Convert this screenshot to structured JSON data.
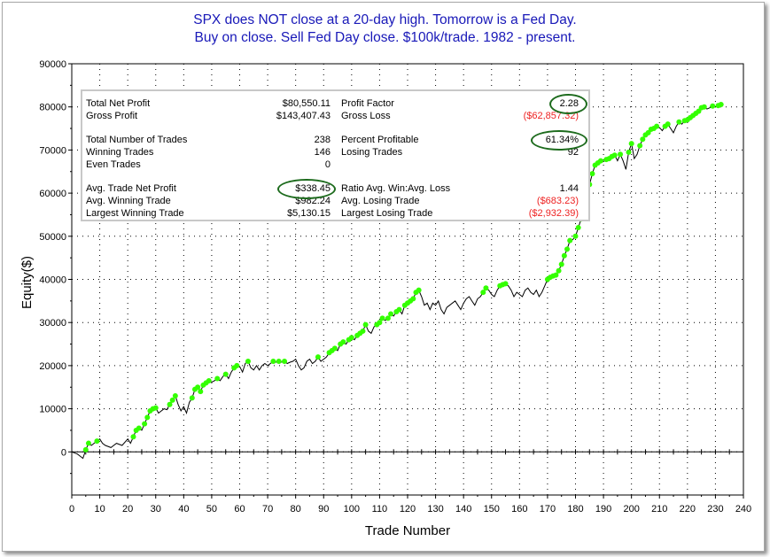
{
  "title": {
    "line1": "SPX does NOT close at a 20-day high. Tomorrow is a Fed Day.",
    "line2": "Buy on close. Sell Fed Day close. $100k/trade. 1982 - present."
  },
  "stats": {
    "left": [
      {
        "label": "Total Net Profit",
        "value": "$80,550.11"
      },
      {
        "label": "Gross Profit",
        "value": "$143,407.43"
      },
      {
        "label": "Total Number of Trades",
        "value": "238"
      },
      {
        "label": "Winning Trades",
        "value": "146"
      },
      {
        "label": "Even Trades",
        "value": "0"
      },
      {
        "label": "Avg. Trade Net Profit",
        "value": "$338.45"
      },
      {
        "label": "Avg. Winning Trade",
        "value": "$982.24"
      },
      {
        "label": "Largest Winning Trade",
        "value": "$5,130.15"
      }
    ],
    "right": [
      {
        "label": "Profit Factor",
        "value": "2.28"
      },
      {
        "label": "Gross Loss",
        "value": "($62,857.32)"
      },
      {
        "label": "Percent Profitable",
        "value": "61.34%"
      },
      {
        "label": "Losing Trades",
        "value": "92"
      },
      {
        "label": "Ratio Avg. Win:Avg. Loss",
        "value": "1.44"
      },
      {
        "label": "Avg. Losing Trade",
        "value": "($683.23)"
      },
      {
        "label": "Largest Losing Trade",
        "value": "($2,932.39)"
      }
    ]
  },
  "colors": {
    "title": "#1818b8",
    "equity_line": "#000000",
    "new_high_marker": "#33ff00",
    "negative_value": "#ee2222",
    "highlight_circle": "#1d6b1d"
  },
  "chart_data": {
    "type": "line",
    "xlabel": "Trade Number",
    "ylabel": "Equity($)",
    "xlim": [
      0,
      240
    ],
    "ylim": [
      -10000,
      90000
    ],
    "x_ticks": [
      0,
      10,
      20,
      30,
      40,
      50,
      60,
      70,
      80,
      90,
      100,
      110,
      120,
      130,
      140,
      150,
      160,
      170,
      180,
      190,
      200,
      210,
      220,
      230,
      240
    ],
    "y_ticks": [
      0,
      10000,
      20000,
      30000,
      40000,
      50000,
      60000,
      70000,
      80000,
      90000
    ],
    "grid": "dotted",
    "series": [
      {
        "values": [
          [
            0,
            0
          ],
          [
            2,
            -500
          ],
          [
            4,
            -1500
          ],
          [
            5,
            500
          ],
          [
            6,
            2000
          ],
          [
            7,
            1500
          ],
          [
            9,
            2500
          ],
          [
            10,
            3000
          ],
          [
            11,
            2000
          ],
          [
            12,
            1500
          ],
          [
            14,
            1000
          ],
          [
            16,
            2000
          ],
          [
            18,
            1500
          ],
          [
            20,
            3000
          ],
          [
            21,
            2000
          ],
          [
            22,
            3500
          ],
          [
            23,
            5000
          ],
          [
            24,
            5500
          ],
          [
            25,
            5000
          ],
          [
            26,
            6500
          ],
          [
            27,
            8000
          ],
          [
            28,
            9500
          ],
          [
            29,
            10000
          ],
          [
            30,
            10200
          ],
          [
            31,
            9000
          ],
          [
            32,
            9500
          ],
          [
            33,
            10000
          ],
          [
            34,
            9800
          ],
          [
            35,
            11000
          ],
          [
            36,
            12000
          ],
          [
            37,
            13000
          ],
          [
            38,
            11000
          ],
          [
            39,
            9500
          ],
          [
            40,
            10500
          ],
          [
            41,
            9000
          ],
          [
            42,
            11500
          ],
          [
            43,
            12500
          ],
          [
            44,
            14500
          ],
          [
            45,
            15000
          ],
          [
            46,
            14000
          ],
          [
            47,
            15500
          ],
          [
            48,
            16000
          ],
          [
            49,
            16500
          ],
          [
            50,
            16200
          ],
          [
            51,
            16500
          ],
          [
            52,
            17000
          ],
          [
            53,
            16500
          ],
          [
            54,
            17500
          ],
          [
            55,
            18000
          ],
          [
            56,
            17000
          ],
          [
            57,
            18500
          ],
          [
            58,
            19500
          ],
          [
            59,
            20000
          ],
          [
            60,
            19800
          ],
          [
            61,
            18500
          ],
          [
            62,
            20500
          ],
          [
            63,
            21000
          ],
          [
            64,
            19500
          ],
          [
            65,
            19000
          ],
          [
            66,
            20000
          ],
          [
            67,
            19000
          ],
          [
            68,
            20000
          ],
          [
            69,
            20500
          ],
          [
            70,
            20000
          ],
          [
            71,
            20500
          ],
          [
            72,
            21000
          ],
          [
            73,
            20800
          ],
          [
            74,
            21000
          ],
          [
            75,
            20800
          ],
          [
            76,
            21000
          ],
          [
            77,
            20500
          ],
          [
            78,
            20800
          ],
          [
            79,
            21000
          ],
          [
            80,
            21500
          ],
          [
            81,
            20000
          ],
          [
            82,
            19000
          ],
          [
            83,
            19500
          ],
          [
            84,
            21000
          ],
          [
            85,
            21500
          ],
          [
            86,
            20500
          ],
          [
            87,
            21000
          ],
          [
            88,
            22000
          ],
          [
            89,
            21000
          ],
          [
            90,
            21500
          ],
          [
            91,
            22000
          ],
          [
            92,
            23000
          ],
          [
            93,
            23500
          ],
          [
            94,
            24000
          ],
          [
            95,
            23500
          ],
          [
            96,
            25000
          ],
          [
            97,
            25500
          ],
          [
            98,
            25000
          ],
          [
            99,
            26000
          ],
          [
            100,
            26500
          ],
          [
            101,
            26000
          ],
          [
            102,
            27000
          ],
          [
            103,
            27500
          ],
          [
            104,
            28000
          ],
          [
            105,
            29500
          ],
          [
            106,
            28000
          ],
          [
            107,
            27500
          ],
          [
            108,
            29000
          ],
          [
            109,
            29500
          ],
          [
            110,
            30000
          ],
          [
            111,
            31000
          ],
          [
            112,
            30500
          ],
          [
            113,
            31000
          ],
          [
            114,
            32000
          ],
          [
            115,
            31500
          ],
          [
            116,
            32500
          ],
          [
            117,
            33000
          ],
          [
            118,
            32000
          ],
          [
            119,
            34000
          ],
          [
            120,
            34500
          ],
          [
            121,
            35000
          ],
          [
            122,
            35500
          ],
          [
            123,
            37000
          ],
          [
            124,
            37500
          ],
          [
            125,
            36000
          ],
          [
            126,
            34000
          ],
          [
            127,
            34500
          ],
          [
            128,
            33000
          ],
          [
            129,
            34500
          ],
          [
            130,
            34000
          ],
          [
            131,
            35000
          ],
          [
            132,
            33000
          ],
          [
            133,
            32000
          ],
          [
            134,
            33500
          ],
          [
            135,
            34000
          ],
          [
            136,
            34500
          ],
          [
            137,
            35000
          ],
          [
            138,
            34000
          ],
          [
            139,
            33000
          ],
          [
            140,
            34500
          ],
          [
            141,
            35500
          ],
          [
            142,
            36000
          ],
          [
            143,
            35000
          ],
          [
            144,
            34000
          ],
          [
            145,
            35500
          ],
          [
            146,
            36000
          ],
          [
            147,
            37000
          ],
          [
            148,
            38000
          ],
          [
            149,
            37500
          ],
          [
            150,
            36500
          ],
          [
            151,
            36000
          ],
          [
            152,
            37500
          ],
          [
            153,
            38500
          ],
          [
            154,
            38800
          ],
          [
            155,
            39000
          ],
          [
            156,
            38500
          ],
          [
            157,
            37500
          ],
          [
            158,
            36000
          ],
          [
            159,
            37000
          ],
          [
            160,
            36500
          ],
          [
            161,
            36000
          ],
          [
            162,
            37500
          ],
          [
            163,
            38000
          ],
          [
            164,
            37000
          ],
          [
            165,
            36500
          ],
          [
            166,
            37500
          ],
          [
            167,
            36000
          ],
          [
            168,
            37000
          ],
          [
            169,
            38500
          ],
          [
            170,
            40000
          ],
          [
            171,
            40500
          ],
          [
            172,
            40800
          ],
          [
            173,
            41000
          ],
          [
            174,
            42000
          ],
          [
            175,
            43500
          ],
          [
            176,
            45500
          ],
          [
            177,
            47000
          ],
          [
            178,
            49000
          ],
          [
            179,
            49200
          ],
          [
            180,
            50000
          ],
          [
            181,
            52000
          ],
          [
            182,
            54000
          ],
          [
            183,
            58000
          ],
          [
            184,
            60000
          ],
          [
            185,
            62000
          ],
          [
            186,
            64500
          ],
          [
            187,
            66500
          ],
          [
            188,
            67000
          ],
          [
            189,
            67500
          ],
          [
            190,
            67300
          ],
          [
            191,
            67800
          ],
          [
            192,
            68000
          ],
          [
            193,
            68500
          ],
          [
            194,
            68800
          ],
          [
            195,
            67500
          ],
          [
            196,
            69000
          ],
          [
            197,
            67500
          ],
          [
            198,
            65500
          ],
          [
            199,
            69500
          ],
          [
            200,
            71500
          ],
          [
            201,
            68000
          ],
          [
            202,
            69000
          ],
          [
            203,
            71000
          ],
          [
            204,
            72500
          ],
          [
            205,
            73500
          ],
          [
            206,
            74000
          ],
          [
            207,
            74800
          ],
          [
            208,
            75000
          ],
          [
            209,
            75500
          ],
          [
            210,
            75200
          ],
          [
            211,
            74500
          ],
          [
            212,
            75500
          ],
          [
            213,
            76000
          ],
          [
            214,
            75000
          ],
          [
            215,
            74000
          ],
          [
            216,
            75500
          ],
          [
            217,
            76500
          ],
          [
            218,
            76000
          ],
          [
            219,
            76800
          ],
          [
            220,
            77000
          ],
          [
            221,
            77500
          ],
          [
            222,
            78000
          ],
          [
            223,
            78500
          ],
          [
            224,
            79000
          ],
          [
            225,
            79800
          ],
          [
            226,
            80000
          ],
          [
            227,
            79500
          ],
          [
            228,
            79800
          ],
          [
            229,
            80200
          ],
          [
            230,
            80000
          ],
          [
            231,
            80300
          ],
          [
            232,
            80550
          ]
        ],
        "marker_color": "#33ff00",
        "marked_points": [
          5,
          6,
          9,
          22,
          23,
          24,
          26,
          27,
          28,
          29,
          30,
          35,
          36,
          37,
          43,
          44,
          45,
          46,
          47,
          48,
          49,
          52,
          55,
          58,
          59,
          63,
          72,
          74,
          76,
          88,
          92,
          93,
          94,
          96,
          97,
          99,
          100,
          102,
          103,
          104,
          105,
          109,
          110,
          111,
          113,
          114,
          116,
          117,
          119,
          120,
          121,
          122,
          123,
          124,
          147,
          148,
          153,
          154,
          155,
          170,
          171,
          172,
          173,
          174,
          175,
          176,
          177,
          178,
          180,
          181,
          182,
          183,
          184,
          185,
          186,
          187,
          188,
          189,
          191,
          192,
          193,
          194,
          196,
          199,
          200,
          203,
          204,
          205,
          206,
          207,
          208,
          209,
          212,
          213,
          217,
          219,
          220,
          221,
          222,
          223,
          224,
          225,
          226,
          229,
          231,
          232
        ]
      }
    ]
  }
}
